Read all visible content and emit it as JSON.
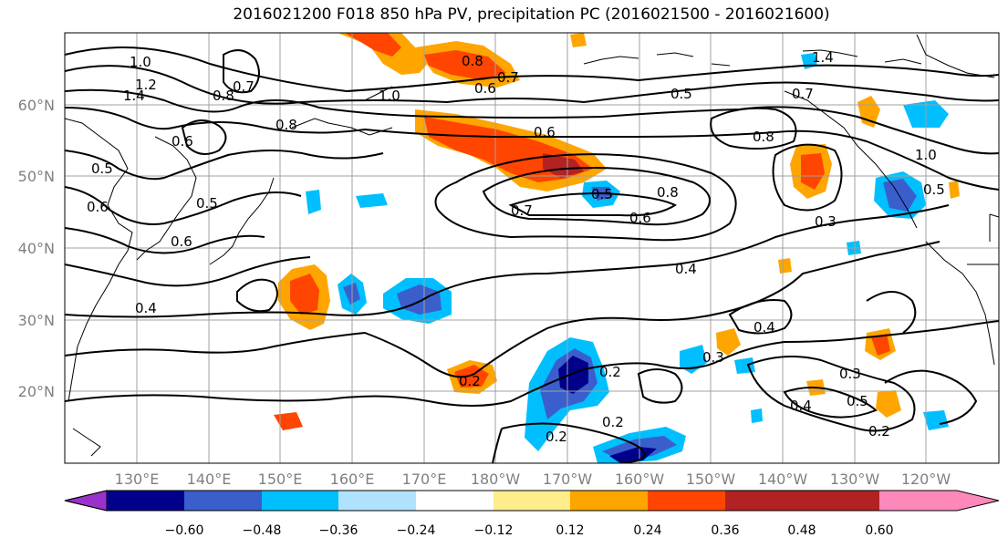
{
  "title": "2016021200 F018 850 hPa PV, precipitation PC (2016021500 - 2016021600)",
  "map": {
    "lat_labels": [
      "60°N",
      "50°N",
      "40°N",
      "30°N",
      "20°N"
    ],
    "lon_labels": [
      "130°E",
      "140°E",
      "150°E",
      "160°E",
      "170°E",
      "180°W",
      "170°W",
      "160°W",
      "150°W",
      "140°W",
      "130°W",
      "120°W"
    ],
    "contour_labels": [
      "1.0",
      "1.2",
      "1.4",
      "0.8",
      "0.7",
      "1.0",
      "0.8",
      "0.6",
      "0.5",
      "0.7",
      "0.8",
      "0.6",
      "0.5",
      "0.4",
      "0.6",
      "0.6",
      "0.5",
      "0.6",
      "0.7",
      "0.6",
      "0.8",
      "0.5",
      "0.8",
      "0.7",
      "1.4",
      "1.0",
      "0.5",
      "0.3",
      "0.4",
      "0.4",
      "0.3",
      "0.2",
      "0.2",
      "0.2",
      "0.2",
      "0.3",
      "0.4",
      "0.5",
      "0.2"
    ]
  },
  "colorbar": {
    "ticks": [
      "−0.60",
      "−0.48",
      "−0.36",
      "−0.24",
      "−0.12",
      "0.12",
      "0.24",
      "0.36",
      "0.48",
      "0.60"
    ],
    "colors": [
      "#9932cc",
      "#00008b",
      "#3a5fcd",
      "#00bfff",
      "#b0e2ff",
      "#ffffff",
      "#ffec8b",
      "#ffa500",
      "#ff4500",
      "#b22222",
      "#ff88bb"
    ]
  }
}
